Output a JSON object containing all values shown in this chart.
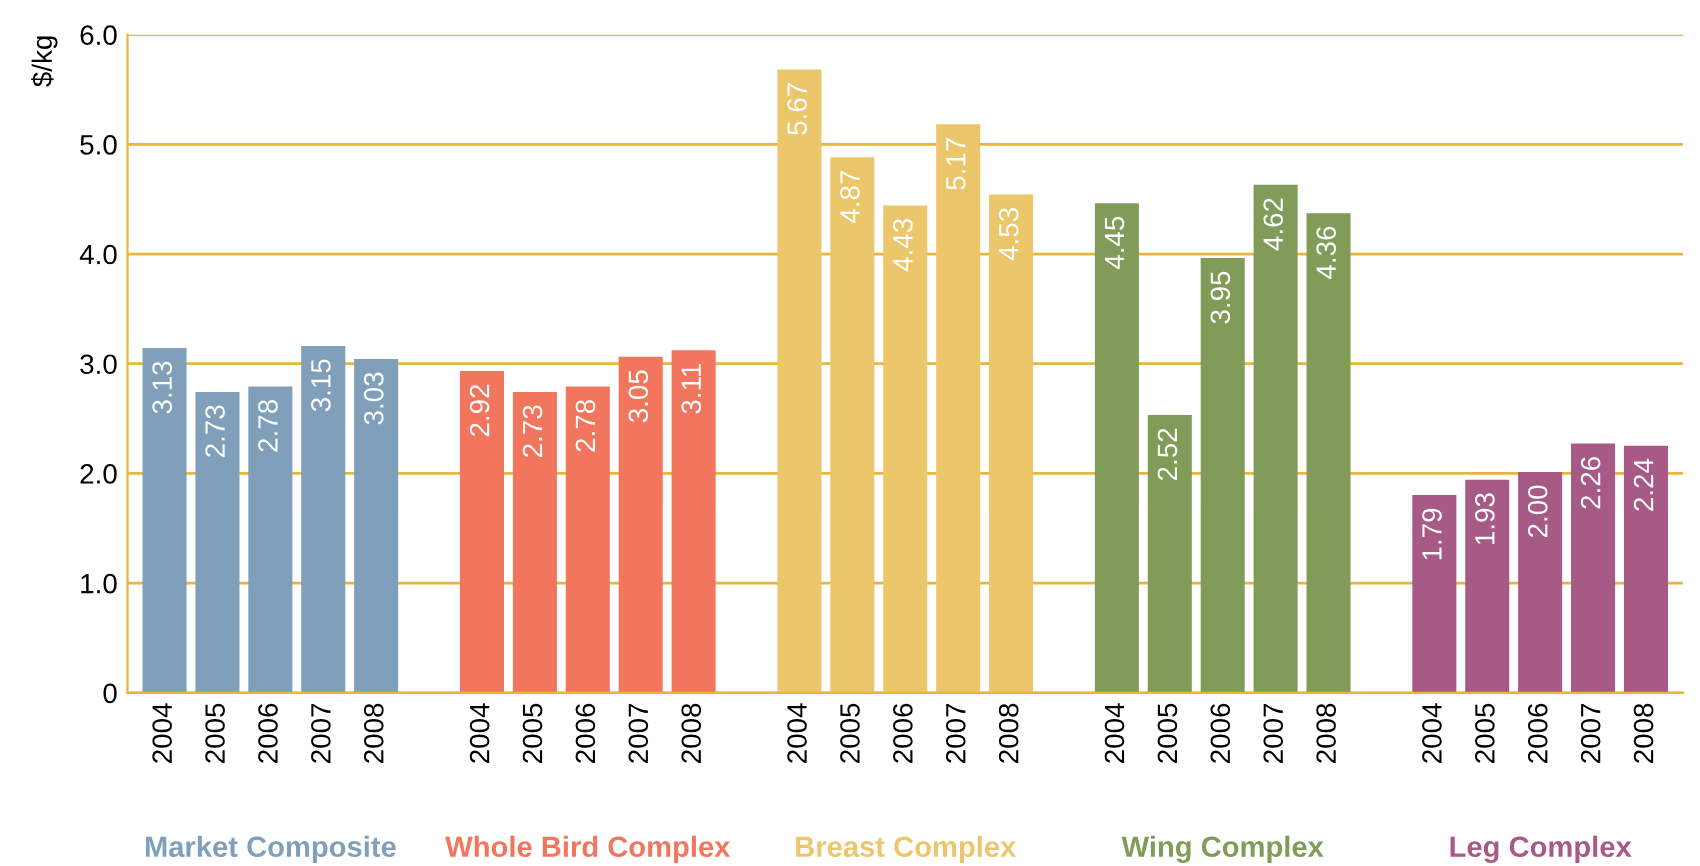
{
  "chart_data": {
    "type": "bar",
    "ylabel": "$/kg",
    "categories": [
      "2004",
      "2005",
      "2006",
      "2007",
      "2008",
      null,
      "2004",
      "2005",
      "2006",
      "2007",
      "2008",
      null,
      "2004",
      "2005",
      "2006",
      "2007",
      "2008",
      null,
      "2004",
      "2005",
      "2006",
      "2007",
      "2008",
      null,
      "2004",
      "2005",
      "2006",
      "2007",
      "2008"
    ],
    "series": [
      {
        "name": "Market Composite",
        "color": "#7f9fba",
        "values": [
          3.13,
          2.73,
          2.78,
          3.15,
          3.03,
          null,
          null,
          null,
          null,
          null,
          null,
          null,
          null,
          null,
          null,
          null,
          null,
          null,
          null,
          null,
          null,
          null,
          null,
          null,
          null,
          null,
          null,
          null,
          null
        ],
        "value_labels": [
          "3.13",
          "2.73",
          "2.78",
          "3.15",
          "3.03",
          null,
          null,
          null,
          null,
          null,
          null,
          null,
          null,
          null,
          null,
          null,
          null,
          null,
          null,
          null,
          null,
          null,
          null,
          null,
          null,
          null,
          null,
          null,
          null
        ]
      },
      {
        "name": "Whole Bird Complex",
        "color": "#f2765e",
        "values": [
          null,
          null,
          null,
          null,
          null,
          null,
          2.92,
          2.73,
          2.78,
          3.05,
          3.11,
          null,
          null,
          null,
          null,
          null,
          null,
          null,
          null,
          null,
          null,
          null,
          null,
          null,
          null,
          null,
          null,
          null,
          null
        ],
        "value_labels": [
          null,
          null,
          null,
          null,
          null,
          null,
          "2.92",
          "2.73",
          "2.78",
          "3.05",
          "3.11",
          null,
          null,
          null,
          null,
          null,
          null,
          null,
          null,
          null,
          null,
          null,
          null,
          null,
          null,
          null,
          null,
          null,
          null
        ]
      },
      {
        "name": "Breast Complex",
        "color": "#ecc66a",
        "values": [
          null,
          null,
          null,
          null,
          null,
          null,
          null,
          null,
          null,
          null,
          null,
          null,
          5.67,
          4.87,
          4.43,
          5.17,
          4.53,
          null,
          null,
          null,
          null,
          null,
          null,
          null,
          null,
          null,
          null,
          null,
          null
        ],
        "value_labels": [
          null,
          null,
          null,
          null,
          null,
          null,
          null,
          null,
          null,
          null,
          null,
          null,
          "5.67",
          "4.87",
          "4.43",
          "5.17",
          "4.53",
          null,
          null,
          null,
          null,
          null,
          null,
          null,
          null,
          null,
          null,
          null,
          null
        ]
      },
      {
        "name": "Wing Complex",
        "color": "#819c58",
        "values": [
          null,
          null,
          null,
          null,
          null,
          null,
          null,
          null,
          null,
          null,
          null,
          null,
          null,
          null,
          null,
          null,
          null,
          null,
          4.45,
          2.52,
          3.95,
          4.62,
          4.36,
          null,
          null,
          null,
          null,
          null,
          null
        ],
        "value_labels": [
          null,
          null,
          null,
          null,
          null,
          null,
          null,
          null,
          null,
          null,
          null,
          null,
          null,
          null,
          null,
          null,
          null,
          null,
          "4.45",
          "2.52",
          "3.95",
          "4.62",
          "4.36",
          null,
          null,
          null,
          null,
          null,
          null
        ]
      },
      {
        "name": "Leg Complex",
        "color": "#a65a85",
        "values": [
          null,
          null,
          null,
          null,
          null,
          null,
          null,
          null,
          null,
          null,
          null,
          null,
          null,
          null,
          null,
          null,
          null,
          null,
          null,
          null,
          null,
          null,
          null,
          null,
          1.79,
          1.93,
          2.0,
          2.26,
          2.24
        ],
        "value_labels": [
          null,
          null,
          null,
          null,
          null,
          null,
          null,
          null,
          null,
          null,
          null,
          null,
          null,
          null,
          null,
          null,
          null,
          null,
          null,
          null,
          null,
          null,
          null,
          null,
          "1.79",
          "1.93",
          "2.00",
          "2.26",
          "2.24"
        ]
      }
    ],
    "ylim": [
      0,
      6.0
    ],
    "yticks": [
      0,
      {
        "value": 1,
        "label": "1.0"
      },
      {
        "value": 2,
        "label": "2.0"
      },
      {
        "value": 3,
        "label": "3.0"
      },
      {
        "value": 4,
        "label": "4.0"
      },
      {
        "value": 5,
        "label": "5.0"
      },
      {
        "value": 6,
        "label": "6.0"
      }
    ],
    "grid": "y",
    "legend": false
  }
}
